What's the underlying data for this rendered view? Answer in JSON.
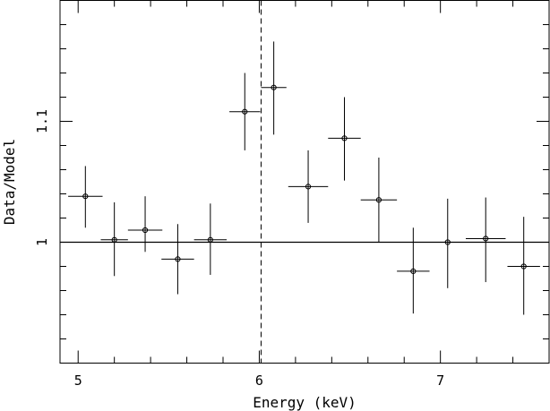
{
  "chart_data": {
    "type": "scatter",
    "xlabel": "Energy (keV)",
    "ylabel": "Data/Model",
    "xlim": [
      4.9,
      7.6
    ],
    "ylim": [
      0.9,
      1.2
    ],
    "x_ticks": [
      {
        "value": 5,
        "label": "5"
      },
      {
        "value": 6,
        "label": "6"
      },
      {
        "value": 7,
        "label": "7"
      }
    ],
    "y_ticks": [
      {
        "value": 1.0,
        "label": "1"
      },
      {
        "value": 1.1,
        "label": "1.1"
      }
    ],
    "reference_line_y": 1.0,
    "dashed_line_x": 6.01,
    "points": [
      {
        "x": 5.04,
        "y": 1.038,
        "xerr": 0.095,
        "yerr_low": 0.026,
        "yerr_high": 0.025
      },
      {
        "x": 5.2,
        "y": 1.002,
        "xerr": 0.075,
        "yerr_low": 0.03,
        "yerr_high": 0.031
      },
      {
        "x": 5.37,
        "y": 1.01,
        "xerr": 0.095,
        "yerr_low": 0.018,
        "yerr_high": 0.028
      },
      {
        "x": 5.55,
        "y": 0.986,
        "xerr": 0.09,
        "yerr_low": 0.029,
        "yerr_high": 0.029
      },
      {
        "x": 5.73,
        "y": 1.002,
        "xerr": 0.09,
        "yerr_low": 0.029,
        "yerr_high": 0.03
      },
      {
        "x": 5.92,
        "y": 1.108,
        "xerr": 0.085,
        "yerr_low": 0.032,
        "yerr_high": 0.032
      },
      {
        "x": 6.08,
        "y": 1.128,
        "xerr": 0.07,
        "yerr_low": 0.039,
        "yerr_high": 0.038
      },
      {
        "x": 6.27,
        "y": 1.046,
        "xerr": 0.11,
        "yerr_low": 0.03,
        "yerr_high": 0.03
      },
      {
        "x": 6.47,
        "y": 1.086,
        "xerr": 0.09,
        "yerr_low": 0.035,
        "yerr_high": 0.034
      },
      {
        "x": 6.66,
        "y": 1.035,
        "xerr": 0.1,
        "yerr_low": 0.035,
        "yerr_high": 0.035
      },
      {
        "x": 6.85,
        "y": 0.976,
        "xerr": 0.09,
        "yerr_low": 0.035,
        "yerr_high": 0.036
      },
      {
        "x": 7.04,
        "y": 1.0,
        "xerr": 0.09,
        "yerr_low": 0.038,
        "yerr_high": 0.036
      },
      {
        "x": 7.25,
        "y": 1.003,
        "xerr": 0.11,
        "yerr_low": 0.036,
        "yerr_high": 0.034
      },
      {
        "x": 7.46,
        "y": 0.98,
        "xerr": 0.09,
        "yerr_low": 0.04,
        "yerr_high": 0.041
      }
    ]
  }
}
